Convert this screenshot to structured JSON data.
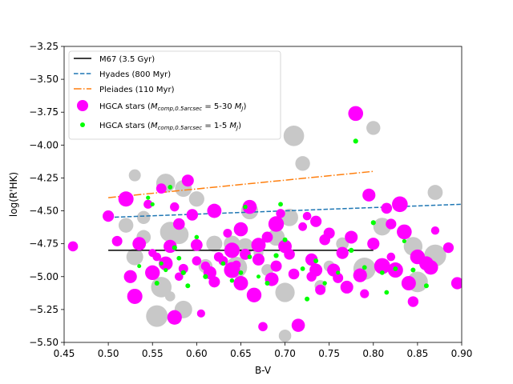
{
  "chart_data": {
    "type": "scatter",
    "xlabel": "B-V",
    "ylabel": "log(R'HK)",
    "xlim": [
      0.45,
      0.9
    ],
    "ylim": [
      -5.5,
      -3.25
    ],
    "y_inverted": false,
    "xticks": [
      "0.45",
      "0.50",
      "0.55",
      "0.60",
      "0.65",
      "0.70",
      "0.75",
      "0.80",
      "0.85",
      "0.90"
    ],
    "yticks": [
      "−3.25",
      "−3.50",
      "−3.75",
      "−4.00",
      "−4.25",
      "−4.50",
      "−4.75",
      "−5.00",
      "−5.25",
      "−5.50"
    ],
    "grid": false,
    "legend_placement": "top-left",
    "lines": [
      {
        "name": "M67 (3.5 Gyr)",
        "color": "#000000",
        "style": "solid",
        "x": [
          0.5,
          0.8
        ],
        "y": [
          -4.8,
          -4.8
        ]
      },
      {
        "name": "Hyades (800 Myr)",
        "color": "#1f77b4",
        "style": "dashed",
        "x": [
          0.5,
          0.9
        ],
        "y": [
          -4.55,
          -4.45
        ]
      },
      {
        "name": "Pleiades (110 Myr)",
        "color": "#ff7f0e",
        "style": "dashdot",
        "x": [
          0.5,
          0.8
        ],
        "y": [
          -4.4,
          -4.2
        ]
      }
    ],
    "background_points": {
      "color": "#c8c8c8",
      "points": [
        [
          0.53,
          -4.23
        ],
        [
          0.565,
          -4.29
        ],
        [
          0.585,
          -4.33
        ],
        [
          0.6,
          -4.41
        ],
        [
          0.54,
          -4.55
        ],
        [
          0.57,
          -4.66
        ],
        [
          0.58,
          -4.68
        ],
        [
          0.62,
          -4.75
        ],
        [
          0.64,
          -4.75
        ],
        [
          0.655,
          -4.77
        ],
        [
          0.67,
          -4.82
        ],
        [
          0.69,
          -4.7
        ],
        [
          0.705,
          -4.55
        ],
        [
          0.72,
          -4.14
        ],
        [
          0.71,
          -3.93
        ],
        [
          0.8,
          -3.87
        ],
        [
          0.87,
          -4.36
        ],
        [
          0.765,
          -4.75
        ],
        [
          0.79,
          -4.94
        ],
        [
          0.845,
          -4.77
        ],
        [
          0.85,
          -5.04
        ],
        [
          0.56,
          -5.08
        ],
        [
          0.57,
          -5.15
        ],
        [
          0.585,
          -5.25
        ],
        [
          0.555,
          -5.3
        ],
        [
          0.7,
          -5.45
        ],
        [
          0.7,
          -5.12
        ],
        [
          0.74,
          -5.07
        ],
        [
          0.645,
          -4.93
        ],
        [
          0.68,
          -4.95
        ],
        [
          0.61,
          -4.92
        ],
        [
          0.53,
          -4.85
        ],
        [
          0.54,
          -4.7
        ],
        [
          0.52,
          -4.61
        ],
        [
          0.66,
          -4.5
        ],
        [
          0.75,
          -4.92
        ],
        [
          0.81,
          -4.62
        ],
        [
          0.87,
          -4.84
        ]
      ]
    },
    "series": [
      {
        "name": "HGCA stars ($M_{comp,0.5arcsec}$ = 5-30 $M_J$)",
        "label_main": "HGCA stars (",
        "label_math": "M",
        "label_sub": "comp,0.5arcsec",
        "label_mid": " = 5-30 ",
        "label_math2": "M",
        "label_sub2": "J",
        "label_end": ")",
        "color": "#ff00ff",
        "points": [
          [
            0.46,
            -4.77
          ],
          [
            0.5,
            -4.54
          ],
          [
            0.51,
            -4.73
          ],
          [
            0.52,
            -4.41
          ],
          [
            0.525,
            -5.0
          ],
          [
            0.53,
            -5.15
          ],
          [
            0.535,
            -4.75
          ],
          [
            0.545,
            -4.45
          ],
          [
            0.55,
            -4.97
          ],
          [
            0.555,
            -4.85
          ],
          [
            0.56,
            -4.33
          ],
          [
            0.565,
            -4.9
          ],
          [
            0.57,
            -4.77
          ],
          [
            0.575,
            -4.47
          ],
          [
            0.58,
            -5.0
          ],
          [
            0.585,
            -4.94
          ],
          [
            0.59,
            -4.27
          ],
          [
            0.595,
            -4.53
          ],
          [
            0.6,
            -4.88
          ],
          [
            0.605,
            -5.28
          ],
          [
            0.61,
            -4.92
          ],
          [
            0.615,
            -4.97
          ],
          [
            0.62,
            -4.5
          ],
          [
            0.625,
            -4.85
          ],
          [
            0.63,
            -4.88
          ],
          [
            0.635,
            -4.67
          ],
          [
            0.64,
            -4.95
          ],
          [
            0.645,
            -4.91
          ],
          [
            0.65,
            -5.05
          ],
          [
            0.655,
            -4.83
          ],
          [
            0.66,
            -4.47
          ],
          [
            0.665,
            -5.14
          ],
          [
            0.67,
            -4.87
          ],
          [
            0.675,
            -5.38
          ],
          [
            0.68,
            -4.7
          ],
          [
            0.685,
            -5.02
          ],
          [
            0.69,
            -4.6
          ],
          [
            0.695,
            -4.52
          ],
          [
            0.7,
            -4.77
          ],
          [
            0.705,
            -4.83
          ],
          [
            0.71,
            -4.98
          ],
          [
            0.715,
            -5.37
          ],
          [
            0.72,
            -4.62
          ],
          [
            0.725,
            -4.54
          ],
          [
            0.73,
            -5.0
          ],
          [
            0.735,
            -4.58
          ],
          [
            0.74,
            -5.1
          ],
          [
            0.745,
            -4.72
          ],
          [
            0.75,
            -4.67
          ],
          [
            0.755,
            -4.95
          ],
          [
            0.76,
            -5.01
          ],
          [
            0.765,
            -4.82
          ],
          [
            0.77,
            -5.08
          ],
          [
            0.775,
            -4.7
          ],
          [
            0.78,
            -3.76
          ],
          [
            0.785,
            -4.99
          ],
          [
            0.79,
            -5.13
          ],
          [
            0.795,
            -4.38
          ],
          [
            0.8,
            -4.75
          ],
          [
            0.81,
            -4.92
          ],
          [
            0.815,
            -4.48
          ],
          [
            0.82,
            -4.85
          ],
          [
            0.825,
            -4.95
          ],
          [
            0.83,
            -4.45
          ],
          [
            0.835,
            -4.66
          ],
          [
            0.84,
            -5.05
          ],
          [
            0.845,
            -5.19
          ],
          [
            0.85,
            -4.85
          ],
          [
            0.86,
            -4.9
          ],
          [
            0.865,
            -4.93
          ],
          [
            0.87,
            -4.65
          ],
          [
            0.885,
            -4.78
          ],
          [
            0.895,
            -5.05
          ],
          [
            0.575,
            -5.31
          ],
          [
            0.64,
            -4.8
          ],
          [
            0.69,
            -4.92
          ],
          [
            0.73,
            -4.87
          ],
          [
            0.67,
            -4.76
          ],
          [
            0.62,
            -5.04
          ],
          [
            0.6,
            -4.76
          ],
          [
            0.55,
            -4.82
          ],
          [
            0.58,
            -4.6
          ],
          [
            0.65,
            -4.64
          ],
          [
            0.735,
            -4.95
          ],
          [
            0.82,
            -4.6
          ]
        ]
      },
      {
        "name": "HGCA stars ($M_{comp,0.5arcsec}$ = 1-5 $M_J$)",
        "label_main": "HGCA stars (",
        "label_math": "M",
        "label_sub": "comp,0.5arcsec",
        "label_mid": " = 1-5 ",
        "label_math2": "M",
        "label_sub2": "J",
        "label_end": ")",
        "color": "#00ff00",
        "points": [
          [
            0.535,
            -4.92
          ],
          [
            0.545,
            -4.4
          ],
          [
            0.55,
            -4.45
          ],
          [
            0.555,
            -5.05
          ],
          [
            0.56,
            -4.9
          ],
          [
            0.565,
            -4.95
          ],
          [
            0.57,
            -4.32
          ],
          [
            0.575,
            -4.78
          ],
          [
            0.58,
            -4.86
          ],
          [
            0.585,
            -4.97
          ],
          [
            0.59,
            -5.07
          ],
          [
            0.6,
            -4.7
          ],
          [
            0.61,
            -5.0
          ],
          [
            0.63,
            -4.9
          ],
          [
            0.64,
            -5.03
          ],
          [
            0.65,
            -4.97
          ],
          [
            0.655,
            -4.47
          ],
          [
            0.66,
            -4.85
          ],
          [
            0.67,
            -5.0
          ],
          [
            0.68,
            -5.05
          ],
          [
            0.69,
            -4.84
          ],
          [
            0.695,
            -4.45
          ],
          [
            0.7,
            -4.72
          ],
          [
            0.72,
            -4.94
          ],
          [
            0.725,
            -5.17
          ],
          [
            0.735,
            -4.88
          ],
          [
            0.745,
            -5.05
          ],
          [
            0.76,
            -4.97
          ],
          [
            0.775,
            -4.8
          ],
          [
            0.78,
            -3.97
          ],
          [
            0.79,
            -4.93
          ],
          [
            0.8,
            -4.59
          ],
          [
            0.81,
            -4.97
          ],
          [
            0.815,
            -5.12
          ],
          [
            0.825,
            -4.94
          ],
          [
            0.835,
            -4.73
          ],
          [
            0.845,
            -4.95
          ],
          [
            0.86,
            -5.07
          ]
        ]
      }
    ]
  }
}
